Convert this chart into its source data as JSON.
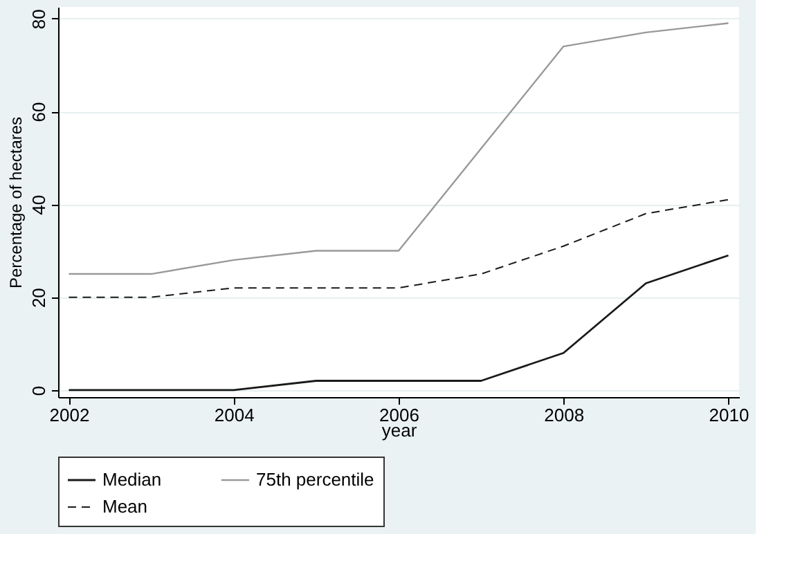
{
  "chart_data": {
    "type": "line",
    "xlabel": "year",
    "ylabel": "Percentage of hectares",
    "x": [
      2002,
      2003,
      2004,
      2005,
      2006,
      2007,
      2008,
      2009,
      2010
    ],
    "series": [
      {
        "name": "Median",
        "color": "#1a1a1a",
        "line_style": "solid",
        "values": [
          0,
          0,
          0,
          2,
          2,
          2,
          8,
          23,
          29
        ]
      },
      {
        "name": "75th percentile",
        "color": "#999999",
        "line_style": "solid",
        "values": [
          25,
          25,
          28,
          30,
          30,
          52,
          74,
          77,
          79
        ]
      },
      {
        "name": "Mean",
        "color": "#1a1a1a",
        "line_style": "dashed",
        "values": [
          20,
          20,
          22,
          22,
          22,
          25,
          31,
          38,
          41
        ]
      }
    ],
    "xlim": [
      2001.87,
      2010.13
    ],
    "xticks": [
      2002,
      2004,
      2006,
      2008,
      2010
    ],
    "ylim": [
      -1.5,
      82.5
    ],
    "yticks": [
      0,
      20,
      40,
      60,
      80
    ],
    "grid": "y",
    "legend": "bottom",
    "marker": "none"
  }
}
